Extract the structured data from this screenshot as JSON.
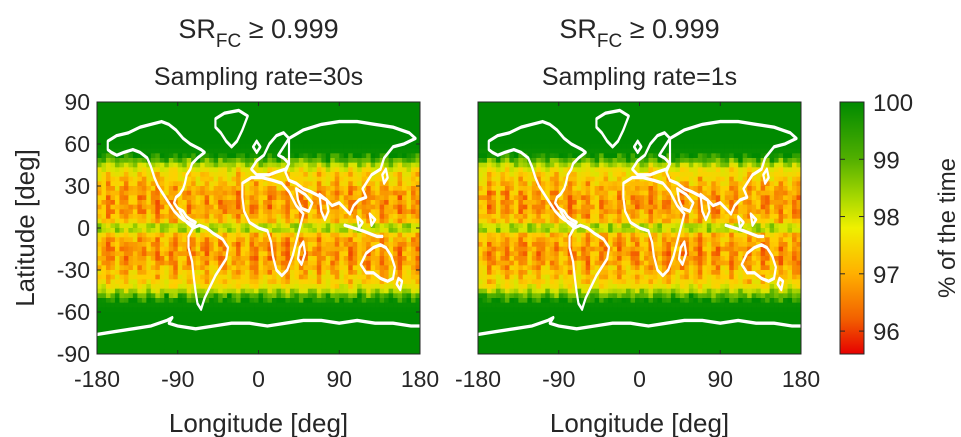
{
  "chart_data": [
    {
      "type": "heatmap",
      "title_main": "SR",
      "title_sub": "FC",
      "title_rest": " ≥ 0.999",
      "subtitle": "Sampling rate=30s",
      "xlabel": "Longitude [deg]",
      "ylabel": "Latitude [deg]",
      "xlim": [
        -180,
        180
      ],
      "ylim": [
        -90,
        90
      ],
      "xticks": [
        "-180",
        "-90",
        "0",
        "90",
        "180"
      ],
      "yticks": [
        "90",
        "60",
        "30",
        "0",
        "-30",
        "-60",
        "-90"
      ],
      "overlay": "coastlines"
    },
    {
      "type": "heatmap",
      "title_main": "SR",
      "title_sub": "FC",
      "title_rest": " ≥ 0.999",
      "subtitle": "Sampling rate=1s",
      "xlabel": "Longitude [deg]",
      "ylabel": "",
      "xlim": [
        -180,
        180
      ],
      "ylim": [
        -90,
        90
      ],
      "xticks": [
        "-180",
        "-90",
        "0",
        "90",
        "180"
      ],
      "yticks": [],
      "overlay": "coastlines"
    }
  ],
  "latitude_profile": {
    "lat": [
      90,
      60,
      52,
      48,
      44,
      40,
      35,
      30,
      25,
      20,
      15,
      10,
      5,
      2,
      0,
      -2,
      -5,
      -10,
      -15,
      -20,
      -25,
      -30,
      -35,
      -40,
      -44,
      -48,
      -52,
      -60,
      -90
    ],
    "percent": [
      100,
      100,
      99.9,
      99.2,
      98.3,
      97.6,
      97.4,
      97.2,
      97.0,
      96.9,
      96.9,
      97.0,
      97.3,
      98.2,
      99.6,
      98.2,
      97.3,
      97.0,
      96.9,
      96.9,
      97.0,
      97.2,
      97.4,
      97.6,
      98.3,
      99.2,
      99.9,
      100,
      100
    ]
  },
  "colorbar": {
    "label": "% of the time",
    "min": 95.6,
    "max": 100,
    "ticks": [
      "100",
      "99",
      "98",
      "97",
      "96"
    ],
    "tick_values": [
      100,
      99,
      98,
      97,
      96
    ],
    "colors": [
      "#e60000",
      "#f56a00",
      "#ffd000",
      "#d8e600",
      "#66b800",
      "#008a00"
    ]
  }
}
